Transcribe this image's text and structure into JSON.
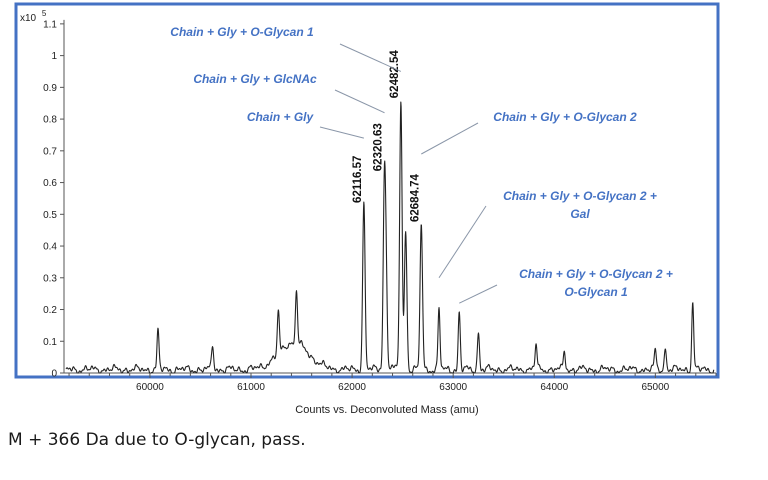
{
  "chart_data": {
    "type": "line",
    "xlabel": "Counts vs. Deconvoluted Mass (amu)",
    "y_multiplier": "x10",
    "y_exponent": "5",
    "xlim": [
      59150,
      65600
    ],
    "ylim": [
      0,
      1.15
    ],
    "x_ticks": [
      {
        "value": 60000,
        "label": "60000"
      },
      {
        "value": 61000,
        "label": "61000"
      },
      {
        "value": 62000,
        "label": "62000"
      },
      {
        "value": 63000,
        "label": "63000"
      },
      {
        "value": 64000,
        "label": "64000"
      },
      {
        "value": 65000,
        "label": "65000"
      }
    ],
    "y_ticks": [
      {
        "value": 0,
        "label": "0"
      },
      {
        "value": 0.1,
        "label": "0.1"
      },
      {
        "value": 0.2,
        "label": "0.2"
      },
      {
        "value": 0.3,
        "label": "0.3"
      },
      {
        "value": 0.4,
        "label": "0.4"
      },
      {
        "value": 0.5,
        "label": "0.5"
      },
      {
        "value": 0.6,
        "label": "0.6"
      },
      {
        "value": 0.7,
        "label": "0.7"
      },
      {
        "value": 0.8,
        "label": "0.8"
      },
      {
        "value": 0.9,
        "label": "0.9"
      },
      {
        "value": 1,
        "label": "1"
      },
      {
        "value": 1.1,
        "label": "1.1"
      }
    ],
    "grid": false,
    "legend": "none",
    "colors": {
      "line": "#222222",
      "frame": "#4472c4",
      "annotation": "#4472c4",
      "axis": "#555555"
    },
    "peaks": [
      {
        "x": 60080,
        "y": 0.12
      },
      {
        "x": 60620,
        "y": 0.08
      },
      {
        "x": 61270,
        "y": 0.13
      },
      {
        "x": 61450,
        "y": 0.17
      },
      {
        "x": 62116.57,
        "y": 0.52
      },
      {
        "x": 62320.63,
        "y": 0.62
      },
      {
        "x": 62340,
        "y": 0.18
      },
      {
        "x": 62482.54,
        "y": 0.85
      },
      {
        "x": 62530,
        "y": 0.44
      },
      {
        "x": 62684.74,
        "y": 0.46
      },
      {
        "x": 62860,
        "y": 0.19
      },
      {
        "x": 63060,
        "y": 0.18
      },
      {
        "x": 63250,
        "y": 0.12
      },
      {
        "x": 63820,
        "y": 0.08
      },
      {
        "x": 64100,
        "y": 0.06
      },
      {
        "x": 65000,
        "y": 0.06
      },
      {
        "x": 65100,
        "y": 0.07
      },
      {
        "x": 65370,
        "y": 0.21
      }
    ],
    "peak_labels": [
      {
        "x": 62116.57,
        "y": 0.52,
        "text": "62116.57"
      },
      {
        "x": 62320.63,
        "y": 0.62,
        "text": "62320.63"
      },
      {
        "x": 62482.54,
        "y": 0.85,
        "text": "62482.54"
      },
      {
        "x": 62684.74,
        "y": 0.46,
        "text": "62684.74"
      }
    ],
    "annotations": [
      {
        "lines": [
          "Chain + Gly + O-Glycan 1"
        ],
        "target": {
          "x": 62482.54,
          "y": 0.95
        }
      },
      {
        "lines": [
          "Chain + Gly + GlcNAc"
        ],
        "target": {
          "x": 62320.63,
          "y": 0.82
        }
      },
      {
        "lines": [
          "Chain + Gly"
        ],
        "target": {
          "x": 62116.57,
          "y": 0.74
        }
      },
      {
        "lines": [
          "Chain + Gly + O-Glycan 2"
        ],
        "target": {
          "x": 62684.74,
          "y": 0.69
        }
      },
      {
        "lines": [
          "Chain + Gly + O-Glycan 2 +",
          "Gal"
        ],
        "target": {
          "x": 62860,
          "y": 0.3
        }
      },
      {
        "lines": [
          "Chain + Gly + O-Glycan 2 +",
          "O-Glycan 1"
        ],
        "target": {
          "x": 63060,
          "y": 0.22
        }
      }
    ]
  },
  "caption": "M + 366 Da due to O-glycan, pass."
}
